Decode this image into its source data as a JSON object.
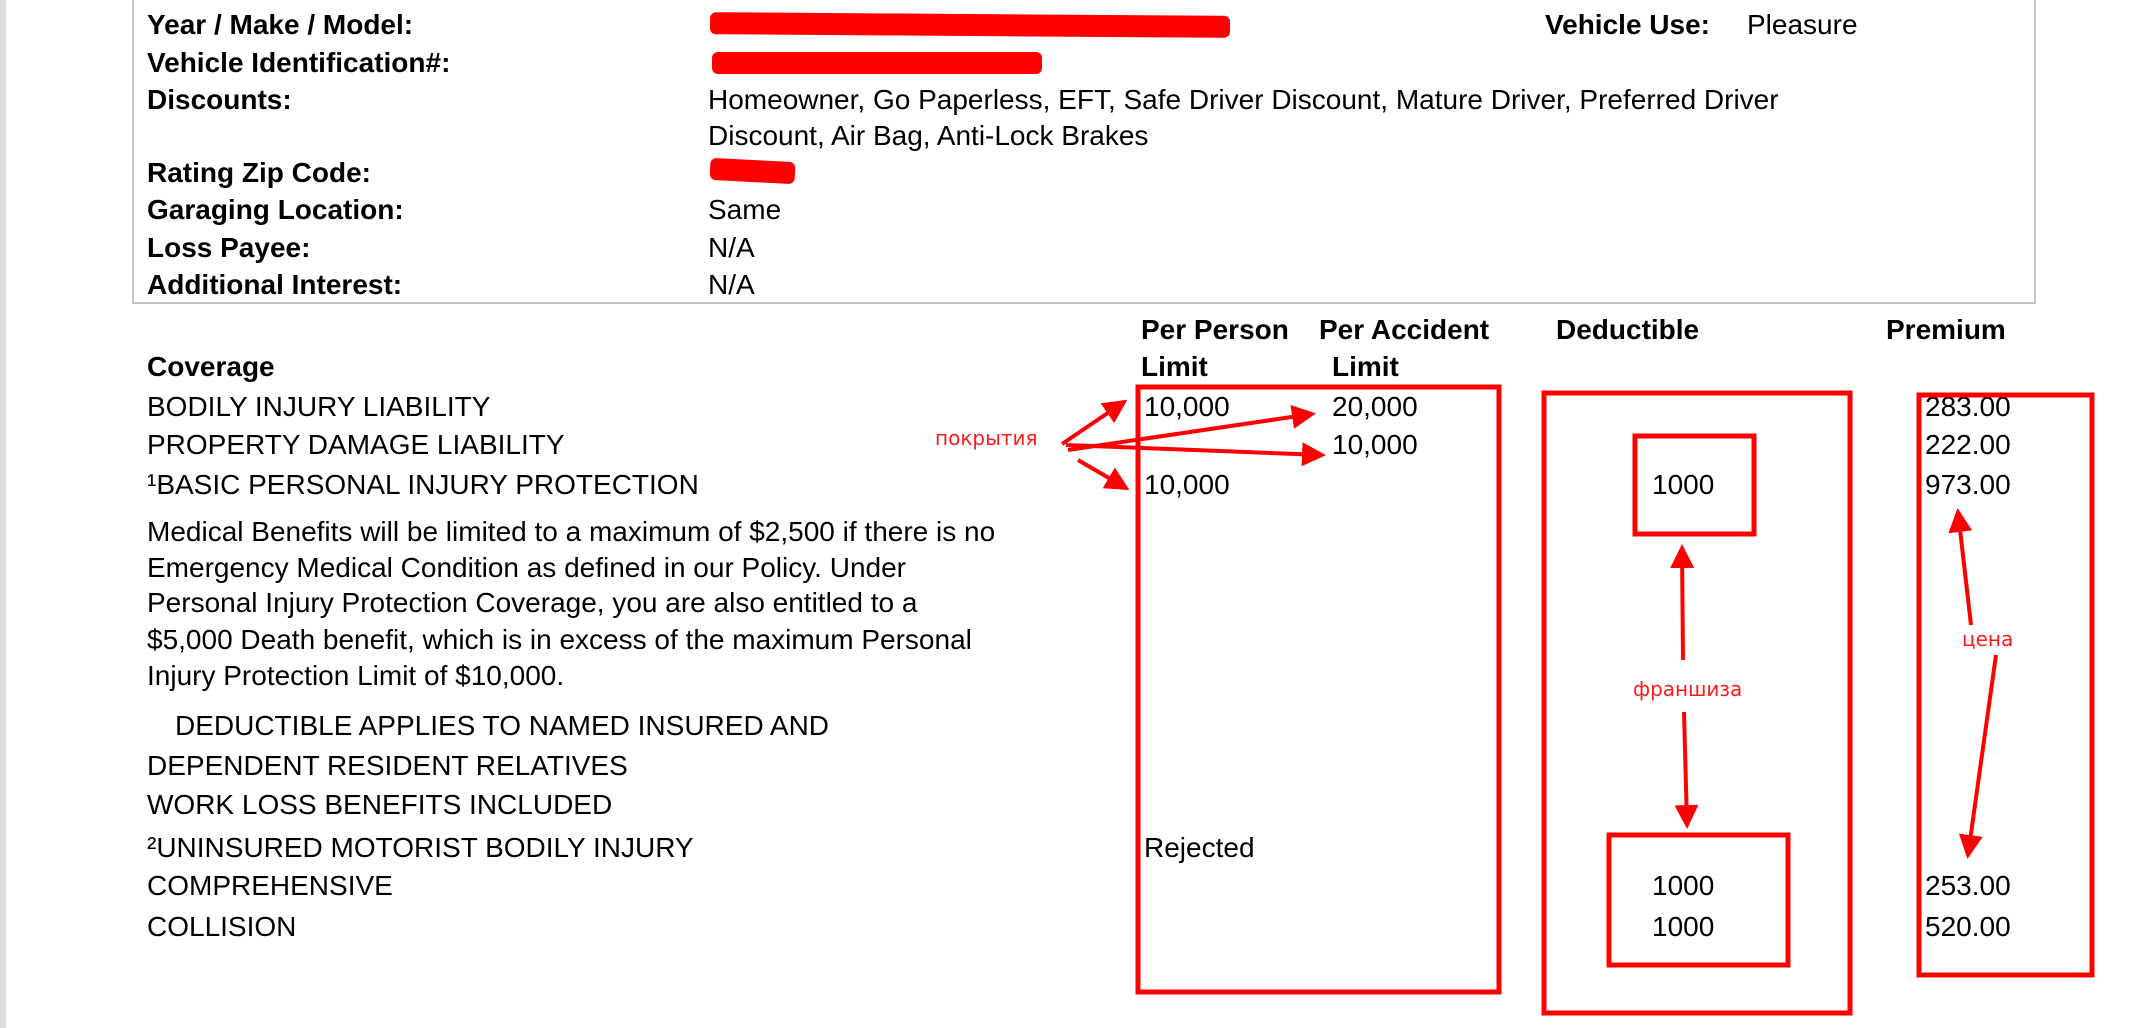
{
  "vehicle_info": {
    "rows": [
      {
        "label": "Year / Make / Model:",
        "value": ""
      },
      {
        "label": "Vehicle Identification#:",
        "value": ""
      },
      {
        "label": "Discounts:",
        "value": "Homeowner, Go Paperless, EFT, Safe Driver Discount, Mature Driver, Preferred Driver",
        "value2": "Discount, Air Bag, Anti-Lock Brakes"
      },
      {
        "label": "Rating Zip Code:",
        "value": ""
      },
      {
        "label": "Garaging Location:",
        "value": "Same"
      },
      {
        "label": "Loss Payee:",
        "value": "N/A"
      },
      {
        "label": "Additional Interest:",
        "value": "N/A"
      }
    ],
    "vehicle_use_label": "Vehicle Use:",
    "vehicle_use_value": "Pleasure"
  },
  "coverage": {
    "headers": {
      "coverage": "Coverage",
      "per_person_1": "Per Person",
      "per_person_2": "Limit",
      "per_accident_1": "Per Accident",
      "per_accident_2": "Limit",
      "deductible": "Deductible",
      "premium": "Premium"
    },
    "rows": [
      {
        "name": "BODILY INJURY LIABILITY",
        "per_person": "10,000",
        "per_accident": "20,000",
        "deductible": "",
        "premium": "283.00"
      },
      {
        "name": "PROPERTY DAMAGE LIABILITY",
        "per_person": "",
        "per_accident": "10,000",
        "deductible": "",
        "premium": "222.00"
      },
      {
        "name": "¹BASIC PERSONAL INJURY PROTECTION",
        "per_person": "10,000",
        "per_accident": "",
        "deductible": "1000",
        "premium": "973.00"
      },
      {
        "name": "²UNINSURED MOTORIST BODILY INJURY",
        "per_person": "Rejected",
        "per_accident": "",
        "deductible": "",
        "premium": ""
      },
      {
        "name": "COMPREHENSIVE",
        "per_person": "",
        "per_accident": "",
        "deductible": "1000",
        "premium": "253.00"
      },
      {
        "name": "COLLISION",
        "per_person": "",
        "per_accident": "",
        "deductible": "1000",
        "premium": "520.00"
      }
    ],
    "pip_note": [
      "Medical Benefits will be limited to a maximum of $2,500 if there is no",
      "Emergency Medical Condition as defined in our Policy.  Under",
      "Personal Injury Protection Coverage, you are also entitled to a",
      "$5,000 Death benefit, which is in excess of the maximum Personal",
      "Injury Protection Limit of $10,000."
    ],
    "pip_lines": [
      "DEDUCTIBLE APPLIES TO NAMED INSURED AND",
      "DEPENDENT RESIDENT RELATIVES",
      "WORK LOSS BENEFITS INCLUDED"
    ]
  },
  "annotations": {
    "limits": "покрытия",
    "deductible": "франшиза",
    "price": "цена",
    "color": "#ff0000"
  }
}
